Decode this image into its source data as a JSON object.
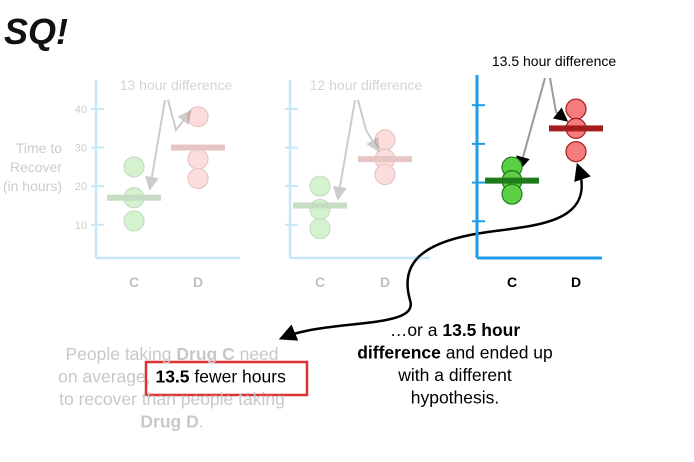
{
  "logo": "SQ!",
  "chart_data": [
    {
      "type": "dot",
      "title": "13 hour difference",
      "ylabel": [
        "Time to",
        "Recover",
        "(in hours)"
      ],
      "categories": [
        "C",
        "D"
      ],
      "values": [
        [
          25,
          17,
          11
        ],
        [
          38,
          27,
          22
        ]
      ],
      "means": [
        17,
        30
      ],
      "colors": [
        "#5ccf45",
        "#f47c7c"
      ],
      "mean_colors": [
        "#1f7a1a",
        "#a51d1d"
      ],
      "axis_color": "#1f9de8",
      "ylim": [
        1.4,
        47.5
      ],
      "yticks": [
        10,
        20,
        30,
        40
      ],
      "show_tick_labels": true,
      "faded": true
    },
    {
      "type": "dot",
      "title": "12 hour difference",
      "categories": [
        "C",
        "D"
      ],
      "values": [
        [
          20,
          14,
          9
        ],
        [
          32,
          27,
          23
        ]
      ],
      "means": [
        15,
        27
      ],
      "colors": [
        "#5ccf45",
        "#f47c7c"
      ],
      "mean_colors": [
        "#1f7a1a",
        "#a51d1d"
      ],
      "axis_color": "#1f9de8",
      "ylim": [
        1.4,
        47.5
      ],
      "yticks": [
        10,
        20,
        30,
        40
      ],
      "show_tick_labels": false,
      "faded": true
    },
    {
      "type": "dot",
      "title": "13.5 hour difference",
      "categories": [
        "C",
        "D"
      ],
      "values": [
        [
          24,
          20.5,
          17
        ],
        [
          39,
          34,
          28
        ]
      ],
      "means": [
        20.5,
        34
      ],
      "colors": [
        "#5ccf45",
        "#f47c7c"
      ],
      "mean_colors": [
        "#1f7a1a",
        "#a51d1d"
      ],
      "axis_color": "#1f9de8",
      "ylim": [
        0.5,
        47.8
      ],
      "yticks": [
        10,
        20,
        30,
        40
      ],
      "show_tick_labels": false,
      "faded": false
    }
  ],
  "left_caption": [
    [
      {
        "text": "People taking "
      },
      {
        "text": "Drug C",
        "bold": true
      },
      {
        "text": " need"
      }
    ],
    [
      {
        "text": "on average, "
      },
      {
        "text": "13.5",
        "bold": true,
        "boxed": true
      },
      {
        "text": " fewer hours",
        "boxed": true
      }
    ],
    [
      {
        "text": "to recover than people taking"
      }
    ],
    [
      {
        "text": "Drug D",
        "bold": true
      },
      {
        "text": "."
      }
    ]
  ],
  "right_caption": [
    [
      {
        "text": "…or a "
      },
      {
        "text": "13.5 hour",
        "bold": true
      }
    ],
    [
      {
        "text": "difference",
        "bold": true
      },
      {
        "text": " and ended up"
      }
    ],
    [
      {
        "text": "with a different"
      }
    ],
    [
      {
        "text": "hypothesis."
      }
    ]
  ]
}
